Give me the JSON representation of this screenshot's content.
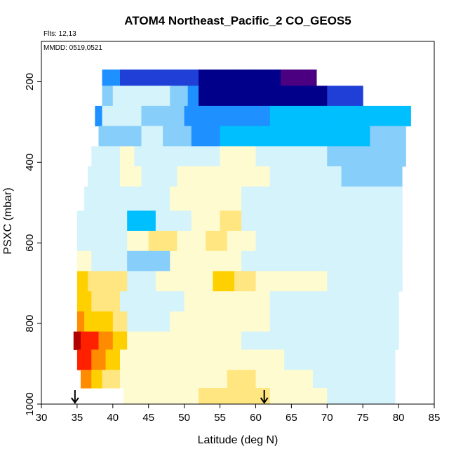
{
  "chart_data": {
    "type": "heatmap",
    "title": "ATOM4 Northeast_Pacific_2 CO_GEOS5",
    "annotations": {
      "flights": "Flts: 12,13",
      "dates": "MMDD: 0519,0521"
    },
    "xlabel": "Latitude (deg N)",
    "ylabel": "PSXC (mbar)",
    "xlim": [
      30,
      85
    ],
    "ylim": [
      1000,
      100
    ],
    "y_reversed": true,
    "x_ticks": [
      30,
      35,
      40,
      45,
      50,
      55,
      60,
      65,
      70,
      75,
      80,
      85
    ],
    "y_ticks": [
      200,
      400,
      600,
      800,
      1000
    ],
    "x_tick_labels": [
      "30",
      "35",
      "40",
      "45",
      "50",
      "55",
      "60",
      "65",
      "70",
      "75",
      "80",
      "85"
    ],
    "y_tick_labels": [
      "200",
      "400",
      "600",
      "800",
      "1000"
    ],
    "arrow_markers_lat": [
      34.7,
      61.2
    ],
    "color_scale": [
      "#4b0082",
      "#00008b",
      "#1f3fd6",
      "#1e90ff",
      "#00bfff",
      "#87cefa",
      "#d4f3fb",
      "#fffbd0",
      "#ffe680",
      "#ffd000",
      "#ff8c00",
      "#ff2000",
      "#b00000"
    ],
    "color_scale_order": "low_to_high",
    "rows": [
      {
        "p_top": 170,
        "p_bot": 210,
        "segments": [
          [
            38.5,
            41,
            3
          ],
          [
            41,
            46,
            2
          ],
          [
            46,
            52,
            2
          ],
          [
            52,
            57,
            1
          ],
          [
            57,
            60,
            1
          ],
          [
            60,
            63.5,
            1
          ],
          [
            63.5,
            68.5,
            0
          ]
        ]
      },
      {
        "p_top": 210,
        "p_bot": 260,
        "segments": [
          [
            38.5,
            40,
            5
          ],
          [
            40,
            43,
            6
          ],
          [
            43,
            48,
            6
          ],
          [
            48,
            50.5,
            5
          ],
          [
            50.5,
            52,
            3
          ],
          [
            52,
            62,
            1
          ],
          [
            62,
            70,
            1
          ],
          [
            70,
            75,
            2
          ]
        ]
      },
      {
        "p_top": 260,
        "p_bot": 310,
        "segments": [
          [
            37.5,
            38.5,
            3
          ],
          [
            38.5,
            44,
            6
          ],
          [
            44,
            47.5,
            5
          ],
          [
            47.5,
            50,
            5
          ],
          [
            50,
            55,
            3
          ],
          [
            55,
            62,
            3
          ],
          [
            62,
            70,
            4
          ],
          [
            70,
            81.7,
            4
          ]
        ]
      },
      {
        "p_top": 310,
        "p_bot": 360,
        "segments": [
          [
            38,
            44,
            5
          ],
          [
            44,
            47,
            6
          ],
          [
            47,
            51,
            5
          ],
          [
            51,
            55,
            3
          ],
          [
            55,
            62,
            4
          ],
          [
            62,
            68,
            4
          ],
          [
            68,
            76,
            4
          ],
          [
            76,
            81,
            5
          ]
        ]
      },
      {
        "p_top": 360,
        "p_bot": 410,
        "segments": [
          [
            37,
            41,
            6
          ],
          [
            41,
            43,
            7
          ],
          [
            43,
            49,
            6
          ],
          [
            49,
            55,
            6
          ],
          [
            55,
            60,
            7
          ],
          [
            60,
            70,
            6
          ],
          [
            70,
            81,
            5
          ]
        ]
      },
      {
        "p_top": 410,
        "p_bot": 460,
        "segments": [
          [
            36.5,
            41,
            6
          ],
          [
            41,
            44,
            7
          ],
          [
            44,
            49,
            6
          ],
          [
            49,
            57,
            7
          ],
          [
            57,
            62,
            7
          ],
          [
            62,
            72,
            6
          ],
          [
            72,
            80.5,
            5
          ]
        ]
      },
      {
        "p_top": 460,
        "p_bot": 520,
        "segments": [
          [
            36,
            42,
            6
          ],
          [
            42,
            48,
            6
          ],
          [
            48,
            54,
            7
          ],
          [
            54,
            58,
            7
          ],
          [
            58,
            68,
            6
          ],
          [
            68,
            80.5,
            6
          ]
        ]
      },
      {
        "p_top": 520,
        "p_bot": 570,
        "segments": [
          [
            35,
            38,
            6
          ],
          [
            38,
            42,
            6
          ],
          [
            42,
            44,
            4
          ],
          [
            44,
            46,
            4
          ],
          [
            46,
            51,
            6
          ],
          [
            51,
            55,
            7
          ],
          [
            55,
            58,
            8
          ],
          [
            58,
            68,
            6
          ],
          [
            68,
            80.5,
            6
          ]
        ]
      },
      {
        "p_top": 570,
        "p_bot": 620,
        "segments": [
          [
            35,
            38,
            6
          ],
          [
            38,
            42,
            6
          ],
          [
            42,
            45,
            7
          ],
          [
            45,
            49,
            8
          ],
          [
            49,
            53,
            7
          ],
          [
            53,
            56,
            8
          ],
          [
            56,
            60,
            7
          ],
          [
            60,
            70,
            6
          ],
          [
            70,
            80.5,
            6
          ]
        ]
      },
      {
        "p_top": 620,
        "p_bot": 670,
        "segments": [
          [
            35,
            37,
            7
          ],
          [
            37,
            42,
            6
          ],
          [
            42,
            44,
            5
          ],
          [
            44,
            48,
            5
          ],
          [
            48,
            54,
            7
          ],
          [
            54,
            58,
            7
          ],
          [
            58,
            66,
            6
          ],
          [
            66,
            80.5,
            6
          ]
        ]
      },
      {
        "p_top": 670,
        "p_bot": 720,
        "segments": [
          [
            35,
            36.5,
            9
          ],
          [
            36.5,
            42,
            8
          ],
          [
            42,
            46,
            6
          ],
          [
            46,
            54,
            7
          ],
          [
            54,
            57,
            9
          ],
          [
            57,
            60,
            8
          ],
          [
            60,
            70,
            7
          ],
          [
            70,
            80.5,
            6
          ]
        ]
      },
      {
        "p_top": 720,
        "p_bot": 770,
        "segments": [
          [
            35,
            37,
            9
          ],
          [
            37,
            41,
            8
          ],
          [
            41,
            44,
            6
          ],
          [
            44,
            50,
            6
          ],
          [
            50,
            56,
            7
          ],
          [
            56,
            62,
            7
          ],
          [
            62,
            72,
            6
          ],
          [
            72,
            80,
            6
          ]
        ]
      },
      {
        "p_top": 770,
        "p_bot": 820,
        "segments": [
          [
            35,
            36,
            10
          ],
          [
            36,
            40,
            9
          ],
          [
            40,
            42,
            8
          ],
          [
            42,
            48,
            6
          ],
          [
            48,
            56,
            7
          ],
          [
            56,
            62,
            7
          ],
          [
            62,
            72,
            6
          ],
          [
            72,
            80,
            6
          ]
        ]
      },
      {
        "p_top": 820,
        "p_bot": 865,
        "segments": [
          [
            34.5,
            35.5,
            12
          ],
          [
            35.5,
            38,
            11
          ],
          [
            38,
            40,
            10
          ],
          [
            40,
            42,
            9
          ],
          [
            42,
            50,
            7
          ],
          [
            50,
            58,
            7
          ],
          [
            58,
            66,
            6
          ],
          [
            66,
            80,
            6
          ]
        ]
      },
      {
        "p_top": 865,
        "p_bot": 915,
        "segments": [
          [
            35,
            37,
            11
          ],
          [
            37,
            39,
            10
          ],
          [
            39,
            41,
            9
          ],
          [
            41,
            46,
            7
          ],
          [
            46,
            56,
            7
          ],
          [
            56,
            64,
            7
          ],
          [
            64,
            72,
            6
          ],
          [
            72,
            79.5,
            6
          ]
        ]
      },
      {
        "p_top": 915,
        "p_bot": 960,
        "segments": [
          [
            35.5,
            37,
            10
          ],
          [
            37,
            38.5,
            9
          ],
          [
            38.5,
            41,
            8
          ],
          [
            41,
            48,
            7
          ],
          [
            48,
            56,
            7
          ],
          [
            56,
            60,
            8
          ],
          [
            60,
            68,
            7
          ],
          [
            68,
            79.5,
            6
          ]
        ]
      },
      {
        "p_top": 960,
        "p_bot": 1000,
        "segments": [
          [
            41.5,
            46,
            7
          ],
          [
            46,
            52,
            7
          ],
          [
            52,
            58,
            8
          ],
          [
            58,
            62,
            8
          ],
          [
            62,
            70,
            7
          ],
          [
            70,
            79.5,
            6
          ]
        ]
      }
    ]
  }
}
